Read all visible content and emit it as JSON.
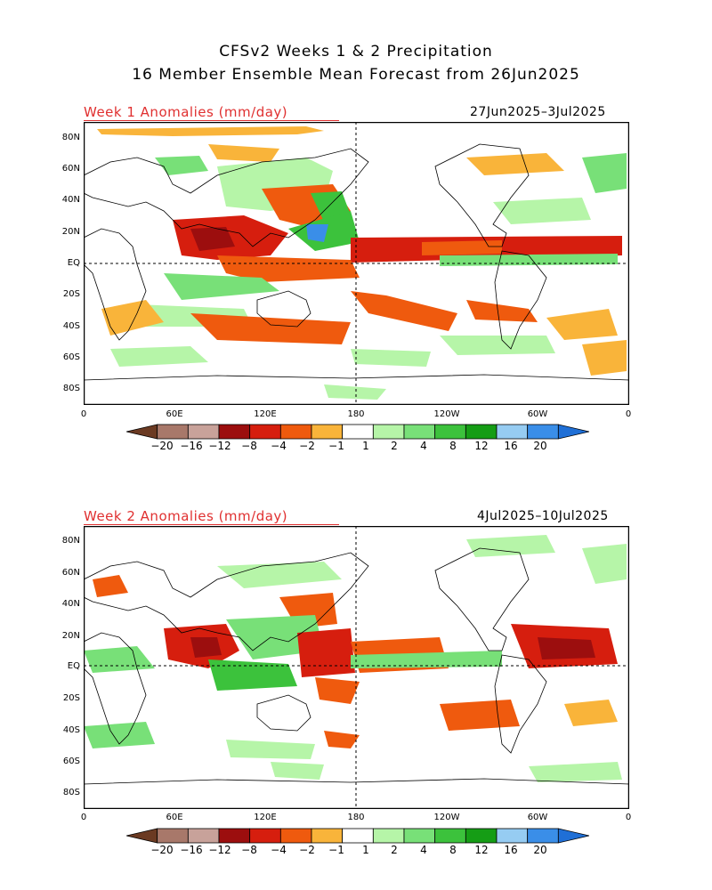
{
  "title_line1": "CFSv2 Weeks 1 & 2 Precipitation",
  "title_line2": "16 Member Ensemble Mean Forecast from 26Jun2025",
  "panels": [
    {
      "label": "Week 1 Anomalies (mm/day)",
      "dates": "27Jun2025–3Jul2025",
      "lat_ticks": [
        "80N",
        "60N",
        "40N",
        "20N",
        "EQ",
        "20S",
        "40S",
        "60S",
        "80S"
      ],
      "lon_ticks": [
        "0",
        "60E",
        "120E",
        "180",
        "120W",
        "60W",
        "0"
      ]
    },
    {
      "label": "Week 2 Anomalies (mm/day)",
      "dates": "4Jul2025–10Jul2025",
      "lat_ticks": [
        "80N",
        "60N",
        "40N",
        "20N",
        "EQ",
        "20S",
        "40S",
        "60S",
        "80S"
      ],
      "lon_ticks": [
        "0",
        "60E",
        "120E",
        "180",
        "120W",
        "60W",
        "0"
      ]
    }
  ],
  "colorbar": {
    "labels": [
      "−20",
      "−16",
      "−12",
      "−8",
      "−4",
      "−2",
      "−1",
      "1",
      "2",
      "4",
      "8",
      "12",
      "16",
      "20"
    ],
    "colors": [
      "#6b3a22",
      "#a8786a",
      "#c8a29a",
      "#9c0e0e",
      "#d61e0e",
      "#ef5a0e",
      "#f9b43a",
      "#ffffff",
      "#b6f5a8",
      "#78e078",
      "#3cc23c",
      "#159d15",
      "#96ccf2",
      "#3a8ee8",
      "#1f6fd6"
    ]
  },
  "legend_colors": {
    "wet_light": "#b6f5a8",
    "wet_mid": "#78e078",
    "wet_strong": "#3cc23c",
    "wet_heavy": "#159d15",
    "wet_extreme": "#3a8ee8",
    "dry_light": "#f9b43a",
    "dry_mid": "#ef5a0e",
    "dry_strong": "#d61e0e",
    "dry_heavy": "#9c0e0e",
    "dry_extreme": "#a8786a"
  }
}
